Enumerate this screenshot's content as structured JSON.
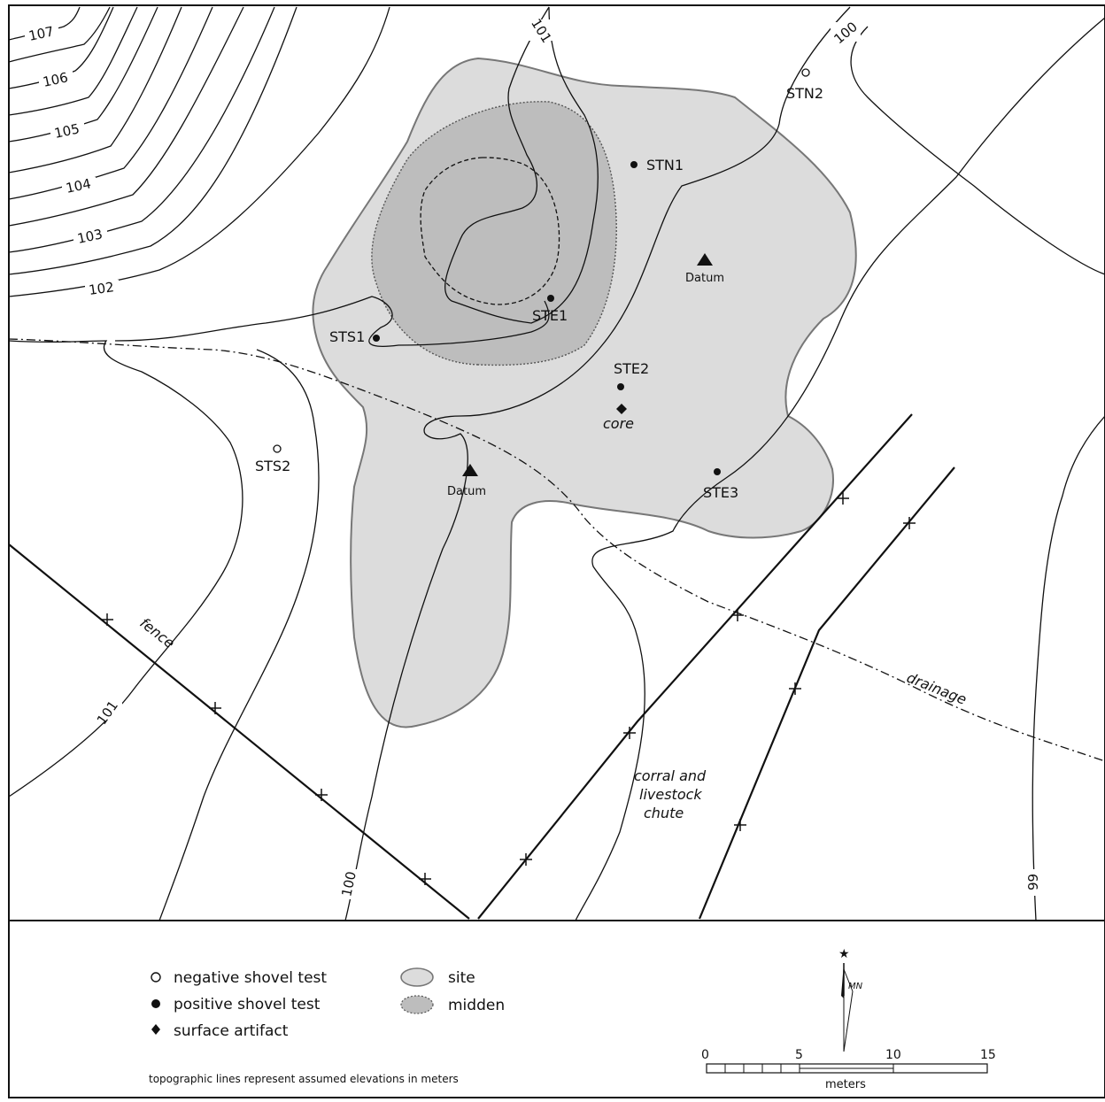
{
  "contours": {
    "c107": "107",
    "c106": "106",
    "c105": "105",
    "c104": "104",
    "c103": "103",
    "c102": "102",
    "c101_top": "101",
    "c101_bottom": "101",
    "c100_top": "100",
    "c100_bottom": "100",
    "c99": "99"
  },
  "map_labels": {
    "stn1": "STN1",
    "stn2": "STN2",
    "ste1": "STE1",
    "ste2": "STE2",
    "ste3": "STE3",
    "sts1": "STS1",
    "sts2": "STS2",
    "datum_ne": "Datum",
    "datum_sw": "Datum",
    "core": "core",
    "fence": "fence",
    "drainage": "drainage",
    "corral_1": "corral and",
    "corral_2": "livestock",
    "corral_3": "chute"
  },
  "legend": {
    "negative": "negative shovel test",
    "positive": "positive shovel test",
    "surface": "surface artifact",
    "site": "site",
    "midden": "midden",
    "note": "topographic lines represent assumed elevations in meters"
  },
  "scale": {
    "t0": "0",
    "t5": "5",
    "t10": "10",
    "t15": "15",
    "unit": "meters"
  },
  "north": {
    "mn": "MN"
  },
  "colors": {
    "site": "#dcdcdc",
    "midden": "#bdbdbd",
    "ink": "#111111",
    "background": "#ffffff"
  }
}
